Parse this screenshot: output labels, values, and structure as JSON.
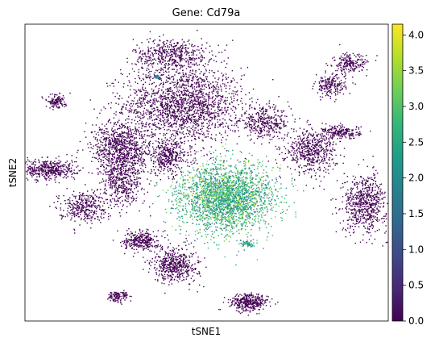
{
  "chart_data": {
    "type": "scatter",
    "title": "Gene: Cd79a",
    "xlabel": "tSNE1",
    "ylabel": "tSNE2",
    "colorbar": {
      "colormap": "viridis",
      "range": [
        0.0,
        4.15
      ],
      "ticks": [
        "0.0",
        "0.5",
        "1.0",
        "1.5",
        "2.0",
        "2.5",
        "3.0",
        "3.5",
        "4.0"
      ],
      "colors": [
        "#440154",
        "#482878",
        "#3e4989",
        "#31688e",
        "#26828e",
        "#1f9e89",
        "#35b779",
        "#6ece58",
        "#b5de2b",
        "#fde725"
      ]
    },
    "x_ticks_shown": false,
    "y_ticks_shown": false,
    "grid": false,
    "clusters": [
      {
        "x": 0.0,
        "y": 0.0,
        "sx": 5.6,
        "sy": 5.0,
        "n": 2600,
        "expr": 2.6,
        "spread": 0.55
      },
      {
        "x": -5.5,
        "y": 15.0,
        "sx": 7.0,
        "sy": 5.5,
        "n": 1800,
        "expr": 0.0,
        "spread": 0.0
      },
      {
        "x": -7.0,
        "y": 23.0,
        "sx": 4.5,
        "sy": 2.5,
        "n": 500,
        "expr": 0.0,
        "spread": 0.0
      },
      {
        "x": -7.5,
        "y": 6.5,
        "sx": 2.8,
        "sy": 2.6,
        "n": 400,
        "expr": 0.0,
        "spread": 0.0
      },
      {
        "x": 5.0,
        "y": 12.0,
        "sx": 3.0,
        "sy": 2.2,
        "n": 350,
        "expr": 0.0,
        "spread": 0.0
      },
      {
        "x": 11.0,
        "y": 7.5,
        "sx": 3.0,
        "sy": 3.2,
        "n": 550,
        "expr": 0.0,
        "spread": 0.0
      },
      {
        "x": 15.0,
        "y": 10.5,
        "sx": 2.2,
        "sy": 1.0,
        "n": 200,
        "expr": 0.0,
        "spread": 0.0
      },
      {
        "x": 13.5,
        "y": 18.0,
        "sx": 1.8,
        "sy": 1.6,
        "n": 200,
        "expr": 0.0,
        "spread": 0.0
      },
      {
        "x": 18.0,
        "y": -1.0,
        "sx": 2.6,
        "sy": 4.2,
        "n": 650,
        "expr": 0.0,
        "spread": 0.0
      },
      {
        "x": -23.0,
        "y": 4.5,
        "sx": 3.3,
        "sy": 1.6,
        "n": 450,
        "expr": 0.0,
        "spread": 0.0
      },
      {
        "x": -18.5,
        "y": -1.5,
        "sx": 2.8,
        "sy": 2.2,
        "n": 350,
        "expr": 0.0,
        "spread": 0.0
      },
      {
        "x": -13.5,
        "y": 8.0,
        "sx": 3.5,
        "sy": 4.0,
        "n": 800,
        "expr": 0.0,
        "spread": 0.0
      },
      {
        "x": -13.5,
        "y": 2.5,
        "sx": 2.5,
        "sy": 3.5,
        "n": 450,
        "expr": 0.0,
        "spread": 0.0
      },
      {
        "x": -11.0,
        "y": -7.0,
        "sx": 2.0,
        "sy": 1.5,
        "n": 300,
        "expr": 0.0,
        "spread": 0.0
      },
      {
        "x": -6.5,
        "y": -11.0,
        "sx": 2.7,
        "sy": 2.5,
        "n": 500,
        "expr": 0.0,
        "spread": 0.0
      },
      {
        "x": 3.0,
        "y": -17.0,
        "sx": 2.2,
        "sy": 1.3,
        "n": 350,
        "expr": 0.0,
        "spread": 0.0
      },
      {
        "x": -14.0,
        "y": -16.0,
        "sx": 1.2,
        "sy": 0.8,
        "n": 120,
        "expr": 0.0,
        "spread": 0.0
      },
      {
        "x": -22.0,
        "y": 15.5,
        "sx": 1.2,
        "sy": 1.0,
        "n": 120,
        "expr": 0.0,
        "spread": 0.0
      },
      {
        "x": 16.0,
        "y": 21.5,
        "sx": 2.0,
        "sy": 1.5,
        "n": 200,
        "expr": 0.0,
        "spread": 0.0
      },
      {
        "x": 2.8,
        "y": -7.5,
        "sx": 0.7,
        "sy": 0.5,
        "n": 60,
        "expr": 2.4,
        "spread": 0.4
      },
      {
        "x": -9.0,
        "y": 19.5,
        "sx": 0.6,
        "sy": 0.3,
        "n": 30,
        "expr": 1.8,
        "spread": 0.3
      }
    ],
    "xlim": [
      -26.0,
      21.0
    ],
    "ylim": [
      -20.0,
      28.0
    ]
  }
}
